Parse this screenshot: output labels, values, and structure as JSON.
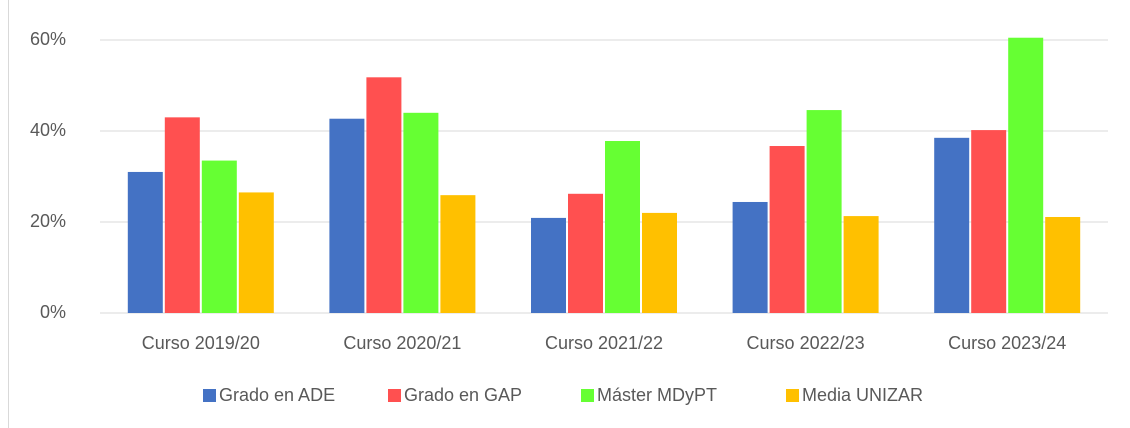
{
  "chart_data": {
    "type": "bar",
    "categories": [
      "Curso 2019/20",
      "Curso 2020/21",
      "Curso 2021/22",
      "Curso 2022/23",
      "Curso 2023/24"
    ],
    "series": [
      {
        "name": "Grado en ADE",
        "color": "#4472c4",
        "values": [
          31,
          42.7,
          20.9,
          24.4,
          38.5
        ]
      },
      {
        "name": "Grado en GAP",
        "color": "#ff5050",
        "values": [
          43,
          51.8,
          26.2,
          36.7,
          40.2
        ]
      },
      {
        "name": "Máster MDyPT",
        "color": "#66ff33",
        "values": [
          33.5,
          44,
          37.8,
          44.6,
          60.5
        ]
      },
      {
        "name": "Media UNIZAR",
        "color": "#ffc000",
        "values": [
          26.5,
          25.9,
          22,
          21.3,
          21.1
        ]
      }
    ],
    "ylim": [
      0,
      60
    ],
    "yticks": [
      {
        "value": 0,
        "label": "0%"
      },
      {
        "value": 20,
        "label": "20%"
      },
      {
        "value": 40,
        "label": "40%"
      },
      {
        "value": 60,
        "label": "60%"
      }
    ],
    "grid": true,
    "legend": "bottom"
  }
}
